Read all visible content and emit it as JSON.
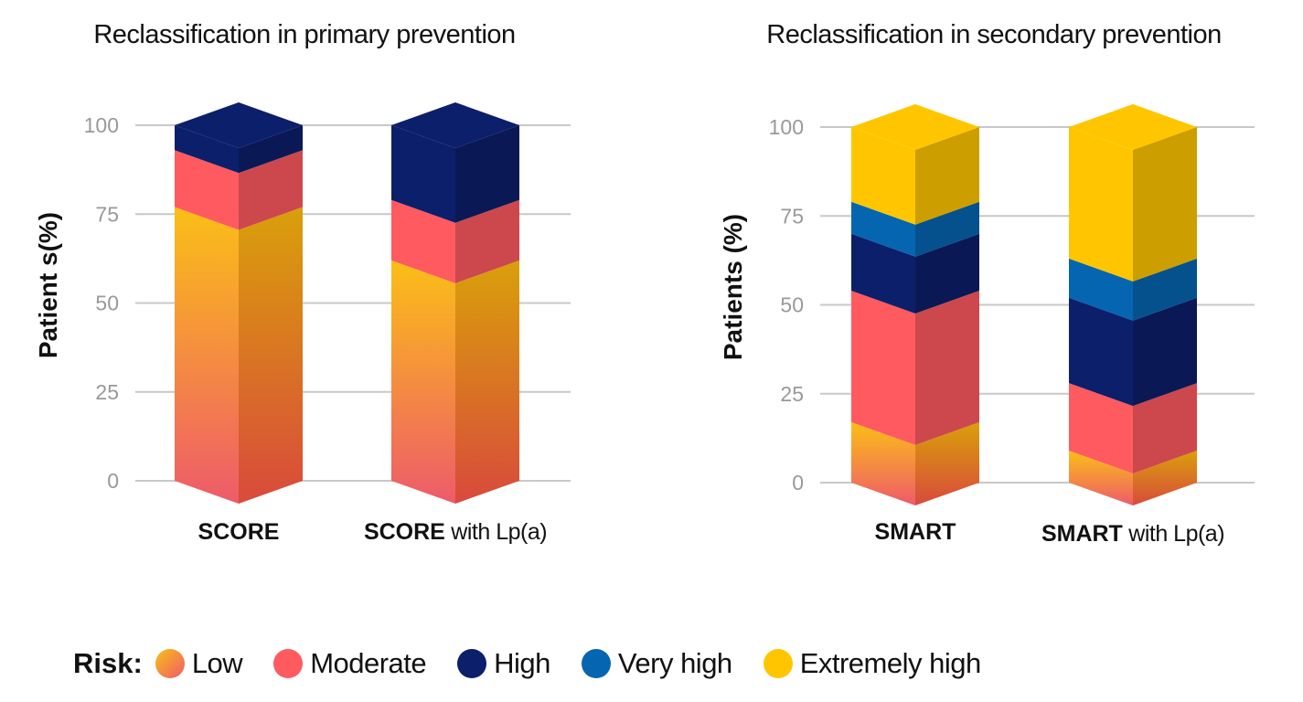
{
  "colors": {
    "low_top": "#fbbf16",
    "low_bottom": "#ee5b6a",
    "moderate": "#ff5a5f",
    "high": "#0c1f6a",
    "very_high": "#0565b0",
    "extremely_high": "#ffc600",
    "grid": "#c8c8c8",
    "tick": "#999999"
  },
  "legend": {
    "title": "Risk:",
    "items": [
      {
        "key": "low",
        "label": "Low",
        "swatch": "gradient"
      },
      {
        "key": "moderate",
        "label": "Moderate",
        "swatch": "#ff5a5f"
      },
      {
        "key": "high",
        "label": "High",
        "swatch": "#0c1f6a"
      },
      {
        "key": "very_high",
        "label": "Very high",
        "swatch": "#0565b0"
      },
      {
        "key": "extremely_high",
        "label": "Extremely high",
        "swatch": "#ffc600"
      }
    ]
  },
  "chart_data": [
    {
      "type": "bar",
      "stacked": true,
      "style": "3d",
      "title": "Reclassification in primary prevention",
      "ylabel": "Patient s(%)",
      "ylim": [
        0,
        100
      ],
      "yticks": [
        0,
        25,
        50,
        75,
        100
      ],
      "grid": true,
      "categories": [
        {
          "bold": "SCORE",
          "rest": ""
        },
        {
          "bold": "SCORE",
          "rest": " with Lp(a)"
        }
      ],
      "series": [
        {
          "key": "low",
          "values": [
            77,
            62
          ]
        },
        {
          "key": "moderate",
          "values": [
            16,
            17
          ]
        },
        {
          "key": "high",
          "values": [
            7,
            21
          ]
        }
      ]
    },
    {
      "type": "bar",
      "stacked": true,
      "style": "3d",
      "title": "Reclassification in secondary prevention",
      "ylabel": "Patients (%)",
      "ylim": [
        0,
        100
      ],
      "yticks": [
        0,
        25,
        50,
        75,
        100
      ],
      "grid": true,
      "categories": [
        {
          "bold": "SMART",
          "rest": ""
        },
        {
          "bold": "SMART",
          "rest": " with Lp(a)"
        }
      ],
      "series": [
        {
          "key": "low",
          "values": [
            17,
            9
          ]
        },
        {
          "key": "moderate",
          "values": [
            37,
            19
          ]
        },
        {
          "key": "high",
          "values": [
            16,
            24
          ]
        },
        {
          "key": "very_high",
          "values": [
            9,
            11
          ]
        },
        {
          "key": "extremely_high",
          "values": [
            21,
            37
          ]
        }
      ]
    }
  ]
}
